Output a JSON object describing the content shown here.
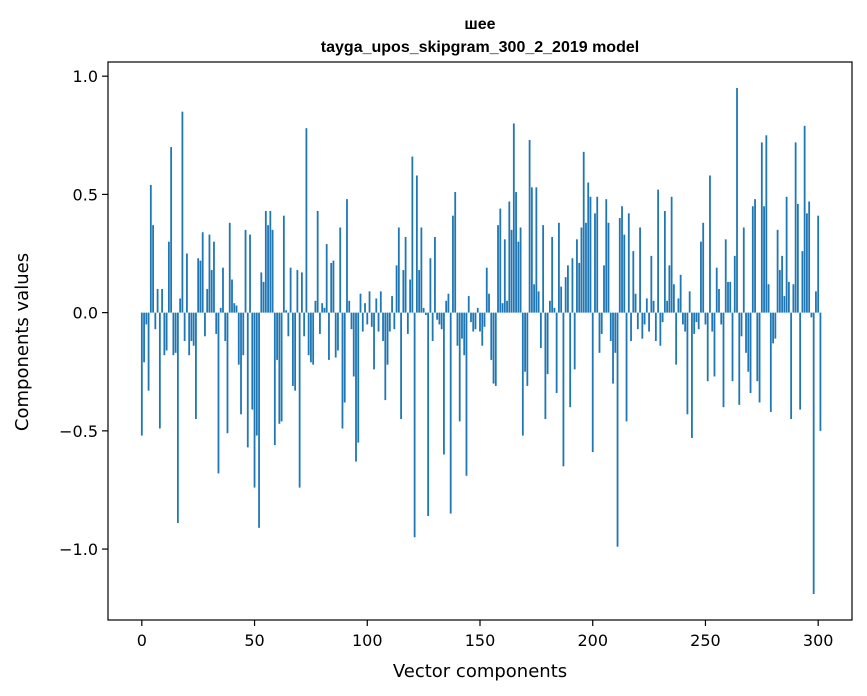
{
  "chart_data": {
    "type": "bar",
    "title_line1": "шее",
    "title_line2": "tayga_upos_skipgram_300_2_2019 model",
    "xlabel": "Vector components",
    "ylabel": "Components values",
    "xlim": [
      -15,
      315
    ],
    "ylim": [
      -1.3,
      1.06
    ],
    "xticks": [
      0,
      50,
      100,
      150,
      200,
      250,
      300
    ],
    "xtick_labels": [
      "0",
      "50",
      "100",
      "150",
      "200",
      "250",
      "300"
    ],
    "yticks": [
      1.0,
      0.5,
      0.0,
      -0.5,
      -1.0
    ],
    "ytick_labels": [
      "1.0",
      "0.5",
      "0.0",
      "−0.5",
      "−1.0"
    ],
    "grid": false,
    "bar_color": "#1f77b4",
    "values": [
      -0.52,
      -0.21,
      -0.05,
      -0.33,
      0.54,
      0.37,
      -0.07,
      0.1,
      -0.49,
      0.1,
      -0.18,
      -0.16,
      0.3,
      0.7,
      -0.18,
      -0.17,
      -0.89,
      0.06,
      0.85,
      -0.12,
      0.25,
      -0.18,
      -0.12,
      -0.14,
      -0.45,
      0.23,
      0.22,
      0.34,
      -0.1,
      0.1,
      0.33,
      0.18,
      0.3,
      -0.09,
      -0.68,
      0.02,
      0.19,
      -0.12,
      -0.51,
      0.38,
      0.14,
      0.04,
      0.03,
      -0.22,
      -0.43,
      -0.18,
      0.35,
      -0.57,
      0.33,
      -0.41,
      -0.74,
      -0.52,
      -0.91,
      0.17,
      0.13,
      0.43,
      0.37,
      0.43,
      0.35,
      -0.56,
      -0.2,
      -0.47,
      -0.46,
      0.41,
      0.01,
      -0.1,
      0.19,
      -0.31,
      -0.33,
      0.18,
      -0.74,
      0.17,
      -0.1,
      0.78,
      -0.18,
      -0.21,
      -0.22,
      0.05,
      0.43,
      -0.09,
      0.04,
      0.02,
      0.29,
      -0.2,
      0.21,
      0.22,
      -0.19,
      -0.16,
      0.36,
      -0.49,
      -0.38,
      0.48,
      0.05,
      -0.07,
      -0.27,
      -0.63,
      -0.55,
      0.08,
      -0.08,
      0.04,
      -0.05,
      0.09,
      -0.06,
      -0.24,
      0.06,
      -0.08,
      0.09,
      -0.12,
      -0.37,
      -0.22,
      -0.08,
      0.07,
      -0.07,
      0.2,
      0.36,
      -0.45,
      0.18,
      0.32,
      -0.09,
      0.14,
      0.66,
      -0.95,
      0.58,
      0.18,
      0.36,
      0.02,
      -0.01,
      -0.86,
      0.23,
      -0.12,
      0.32,
      -0.03,
      -0.05,
      -0.07,
      -0.6,
      0.05,
      0.08,
      -0.85,
      0.41,
      0.51,
      -0.14,
      -0.46,
      -0.11,
      -0.18,
      -0.69,
      0.07,
      -0.04,
      -0.08,
      -0.07,
      0.02,
      -0.08,
      -0.14,
      -0.06,
      0.19,
      0.08,
      -0.2,
      -0.3,
      -0.31,
      0.37,
      0.44,
      0.04,
      0.31,
      0.05,
      0.47,
      0.35,
      0.8,
      0.51,
      0.3,
      0.36,
      -0.52,
      -0.25,
      -0.31,
      0.73,
      0.53,
      0.12,
      0.53,
      0.09,
      -0.15,
      0.37,
      -0.45,
      -0.26,
      0.05,
      0.32,
      0.02,
      -0.34,
      0.38,
      0.11,
      -0.65,
      0.15,
      0.2,
      -0.4,
      0.23,
      -0.24,
      0.31,
      0.21,
      0.36,
      0.68,
      0.38,
      0.55,
      0.49,
      -0.59,
      0.42,
      0.49,
      -0.17,
      -0.09,
      0.2,
      0.48,
      0.38,
      -0.12,
      -0.3,
      -0.17,
      -0.99,
      0.4,
      0.45,
      0.33,
      -0.46,
      0.42,
      -0.12,
      0.26,
      0.08,
      -0.07,
      0.36,
      -0.11,
      -0.05,
      0.06,
      -0.08,
      0.24,
      0.05,
      -0.12,
      0.52,
      -0.14,
      -0.04,
      0.43,
      0.05,
      0.2,
      0.49,
      0.12,
      -0.22,
      0.06,
      0.16,
      -0.05,
      -0.08,
      -0.43,
      0.09,
      -0.53,
      -0.09,
      -0.04,
      -0.07,
      0.3,
      0.38,
      -0.05,
      -0.29,
      0.58,
      -0.08,
      -0.27,
      0.19,
      0.1,
      -0.05,
      -0.4,
      0.31,
      0.13,
      0.13,
      -0.29,
      0.24,
      0.95,
      -0.39,
      -0.1,
      0.36,
      -0.17,
      -0.25,
      -0.34,
      0.45,
      0.48,
      -0.29,
      -0.38,
      0.72,
      0.45,
      0.75,
      0.12,
      -0.42,
      -0.13,
      -0.11,
      0.35,
      0.18,
      0.24,
      0.07,
      0.49,
      0.13,
      -0.45,
      0.12,
      0.72,
      0.46,
      -0.41,
      0.26,
      0.79,
      0.42,
      0.47,
      -0.02,
      -1.19,
      0.09,
      0.41,
      -0.5
    ]
  }
}
